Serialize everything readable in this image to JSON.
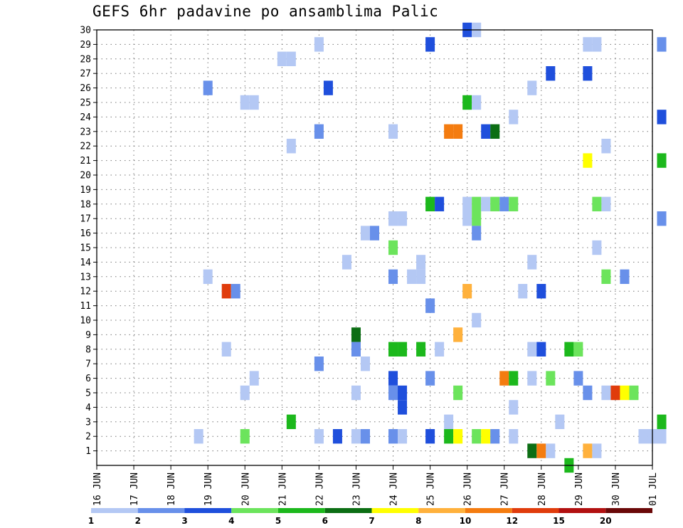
{
  "chart_data": {
    "type": "heatmap",
    "title": "GEFS 6hr padavine po ansamblima Palic",
    "x_tick_labels": [
      "16 JUN",
      "17 JUN",
      "18 JUN",
      "19 JUN",
      "20 JUN",
      "21 JUN",
      "22 JUN",
      "23 JUN",
      "24 JUN",
      "25 JUN",
      "26 JUN",
      "27 JUN",
      "28 JUN",
      "29 JUN",
      "30 JUN",
      "01 JUL"
    ],
    "y_tick_labels": [
      "1",
      "2",
      "3",
      "4",
      "5",
      "6",
      "7",
      "8",
      "9",
      "10",
      "11",
      "12",
      "13",
      "14",
      "15",
      "16",
      "17",
      "18",
      "19",
      "20",
      "21",
      "22",
      "23",
      "24",
      "25",
      "26",
      "27",
      "28",
      "29",
      "30"
    ],
    "x_unit": "6-hour step (0 = 16 JUN 00UTC)",
    "xlim": [
      0,
      61
    ],
    "ylim": [
      0,
      30
    ],
    "grid": true,
    "colorbar": {
      "labels": [
        "1",
        "2",
        "3",
        "4",
        "5",
        "6",
        "7",
        "8",
        "10",
        "12",
        "15",
        "20"
      ],
      "colors": [
        "#b4c8f4",
        "#6890ea",
        "#1f4fdc",
        "#6ce45c",
        "#1cb81c",
        "#0c6e14",
        "#ffff00",
        "#ffb13c",
        "#f47c10",
        "#e03c0c",
        "#b21010",
        "#6a0808"
      ]
    },
    "cells": [
      {
        "m": 30,
        "t": 40,
        "c": 3
      },
      {
        "m": 30,
        "t": 41,
        "c": 1
      },
      {
        "m": 29,
        "t": 24,
        "c": 1
      },
      {
        "m": 29,
        "t": 36,
        "c": 3
      },
      {
        "m": 29,
        "t": 53,
        "c": 1
      },
      {
        "m": 29,
        "t": 54,
        "c": 1
      },
      {
        "m": 29,
        "t": 61,
        "c": 2
      },
      {
        "m": 28,
        "t": 20,
        "c": 1
      },
      {
        "m": 28,
        "t": 21,
        "c": 1
      },
      {
        "m": 27,
        "t": 49,
        "c": 3
      },
      {
        "m": 27,
        "t": 53,
        "c": 3
      },
      {
        "m": 26,
        "t": 12,
        "c": 2
      },
      {
        "m": 26,
        "t": 25,
        "c": 3
      },
      {
        "m": 26,
        "t": 47,
        "c": 1
      },
      {
        "m": 25,
        "t": 16,
        "c": 1
      },
      {
        "m": 25,
        "t": 17,
        "c": 1
      },
      {
        "m": 25,
        "t": 40,
        "c": 5
      },
      {
        "m": 25,
        "t": 41,
        "c": 1
      },
      {
        "m": 24,
        "t": 45,
        "c": 1
      },
      {
        "m": 24,
        "t": 61,
        "c": 3
      },
      {
        "m": 23,
        "t": 24,
        "c": 2
      },
      {
        "m": 23,
        "t": 32,
        "c": 1
      },
      {
        "m": 23,
        "t": 38,
        "c": 9
      },
      {
        "m": 23,
        "t": 39,
        "c": 9
      },
      {
        "m": 23,
        "t": 42,
        "c": 3
      },
      {
        "m": 23,
        "t": 43,
        "c": 6
      },
      {
        "m": 22,
        "t": 21,
        "c": 1
      },
      {
        "m": 22,
        "t": 55,
        "c": 1
      },
      {
        "m": 21,
        "t": 53,
        "c": 7
      },
      {
        "m": 21,
        "t": 61,
        "c": 5
      },
      {
        "m": 18,
        "t": 36,
        "c": 5
      },
      {
        "m": 18,
        "t": 37,
        "c": 3
      },
      {
        "m": 18,
        "t": 40,
        "c": 1
      },
      {
        "m": 18,
        "t": 41,
        "c": 4
      },
      {
        "m": 18,
        "t": 42,
        "c": 1
      },
      {
        "m": 18,
        "t": 43,
        "c": 4
      },
      {
        "m": 18,
        "t": 44,
        "c": 2
      },
      {
        "m": 18,
        "t": 45,
        "c": 4
      },
      {
        "m": 18,
        "t": 54,
        "c": 4
      },
      {
        "m": 18,
        "t": 55,
        "c": 1
      },
      {
        "m": 17,
        "t": 32,
        "c": 1
      },
      {
        "m": 17,
        "t": 33,
        "c": 1
      },
      {
        "m": 17,
        "t": 40,
        "c": 1
      },
      {
        "m": 17,
        "t": 41,
        "c": 4
      },
      {
        "m": 17,
        "t": 61,
        "c": 2
      },
      {
        "m": 16,
        "t": 29,
        "c": 1
      },
      {
        "m": 16,
        "t": 30,
        "c": 2
      },
      {
        "m": 16,
        "t": 41,
        "c": 2
      },
      {
        "m": 15,
        "t": 32,
        "c": 4
      },
      {
        "m": 15,
        "t": 54,
        "c": 1
      },
      {
        "m": 14,
        "t": 27,
        "c": 1
      },
      {
        "m": 14,
        "t": 35,
        "c": 1
      },
      {
        "m": 14,
        "t": 47,
        "c": 1
      },
      {
        "m": 13,
        "t": 12,
        "c": 1
      },
      {
        "m": 13,
        "t": 32,
        "c": 2
      },
      {
        "m": 13,
        "t": 34,
        "c": 1
      },
      {
        "m": 13,
        "t": 35,
        "c": 1
      },
      {
        "m": 13,
        "t": 55,
        "c": 4
      },
      {
        "m": 13,
        "t": 57,
        "c": 2
      },
      {
        "m": 12,
        "t": 14,
        "c": 10
      },
      {
        "m": 12,
        "t": 15,
        "c": 2
      },
      {
        "m": 12,
        "t": 40,
        "c": 8
      },
      {
        "m": 12,
        "t": 46,
        "c": 1
      },
      {
        "m": 12,
        "t": 48,
        "c": 3
      },
      {
        "m": 11,
        "t": 36,
        "c": 2
      },
      {
        "m": 10,
        "t": 41,
        "c": 1
      },
      {
        "m": 9,
        "t": 28,
        "c": 6
      },
      {
        "m": 9,
        "t": 39,
        "c": 8
      },
      {
        "m": 8,
        "t": 14,
        "c": 1
      },
      {
        "m": 8,
        "t": 28,
        "c": 2
      },
      {
        "m": 8,
        "t": 32,
        "c": 5
      },
      {
        "m": 8,
        "t": 33,
        "c": 5
      },
      {
        "m": 8,
        "t": 35,
        "c": 5
      },
      {
        "m": 8,
        "t": 37,
        "c": 1
      },
      {
        "m": 8,
        "t": 47,
        "c": 1
      },
      {
        "m": 8,
        "t": 48,
        "c": 3
      },
      {
        "m": 8,
        "t": 51,
        "c": 5
      },
      {
        "m": 8,
        "t": 52,
        "c": 4
      },
      {
        "m": 7,
        "t": 24,
        "c": 2
      },
      {
        "m": 7,
        "t": 29,
        "c": 1
      },
      {
        "m": 6,
        "t": 17,
        "c": 1
      },
      {
        "m": 6,
        "t": 32,
        "c": 3
      },
      {
        "m": 6,
        "t": 36,
        "c": 2
      },
      {
        "m": 6,
        "t": 44,
        "c": 9
      },
      {
        "m": 6,
        "t": 45,
        "c": 5
      },
      {
        "m": 6,
        "t": 47,
        "c": 1
      },
      {
        "m": 6,
        "t": 49,
        "c": 4
      },
      {
        "m": 6,
        "t": 52,
        "c": 2
      },
      {
        "m": 5,
        "t": 16,
        "c": 1
      },
      {
        "m": 5,
        "t": 28,
        "c": 1
      },
      {
        "m": 5,
        "t": 32,
        "c": 2
      },
      {
        "m": 5,
        "t": 33,
        "c": 3
      },
      {
        "m": 5,
        "t": 39,
        "c": 4
      },
      {
        "m": 5,
        "t": 53,
        "c": 2
      },
      {
        "m": 5,
        "t": 55,
        "c": 1
      },
      {
        "m": 5,
        "t": 56,
        "c": 10
      },
      {
        "m": 5,
        "t": 57,
        "c": 7
      },
      {
        "m": 5,
        "t": 58,
        "c": 4
      },
      {
        "m": 4,
        "t": 33,
        "c": 3
      },
      {
        "m": 4,
        "t": 45,
        "c": 1
      },
      {
        "m": 3,
        "t": 21,
        "c": 5
      },
      {
        "m": 3,
        "t": 38,
        "c": 1
      },
      {
        "m": 3,
        "t": 50,
        "c": 1
      },
      {
        "m": 3,
        "t": 61,
        "c": 5
      },
      {
        "m": 2,
        "t": 11,
        "c": 1
      },
      {
        "m": 2,
        "t": 16,
        "c": 4
      },
      {
        "m": 2,
        "t": 24,
        "c": 1
      },
      {
        "m": 2,
        "t": 26,
        "c": 3
      },
      {
        "m": 2,
        "t": 28,
        "c": 1
      },
      {
        "m": 2,
        "t": 29,
        "c": 2
      },
      {
        "m": 2,
        "t": 32,
        "c": 2
      },
      {
        "m": 2,
        "t": 33,
        "c": 1
      },
      {
        "m": 2,
        "t": 36,
        "c": 3
      },
      {
        "m": 2,
        "t": 38,
        "c": 5
      },
      {
        "m": 2,
        "t": 39,
        "c": 7
      },
      {
        "m": 2,
        "t": 41,
        "c": 4
      },
      {
        "m": 2,
        "t": 42,
        "c": 7
      },
      {
        "m": 2,
        "t": 43,
        "c": 2
      },
      {
        "m": 2,
        "t": 45,
        "c": 1
      },
      {
        "m": 2,
        "t": 59,
        "c": 1
      },
      {
        "m": 2,
        "t": 60,
        "c": 1
      },
      {
        "m": 2,
        "t": 61,
        "c": 1
      },
      {
        "m": 1,
        "t": 47,
        "c": 6
      },
      {
        "m": 1,
        "t": 48,
        "c": 9
      },
      {
        "m": 1,
        "t": 49,
        "c": 1
      },
      {
        "m": 1,
        "t": 53,
        "c": 8
      },
      {
        "m": 1,
        "t": 54,
        "c": 1
      },
      {
        "m": 0,
        "t": 51,
        "c": 5
      }
    ]
  }
}
